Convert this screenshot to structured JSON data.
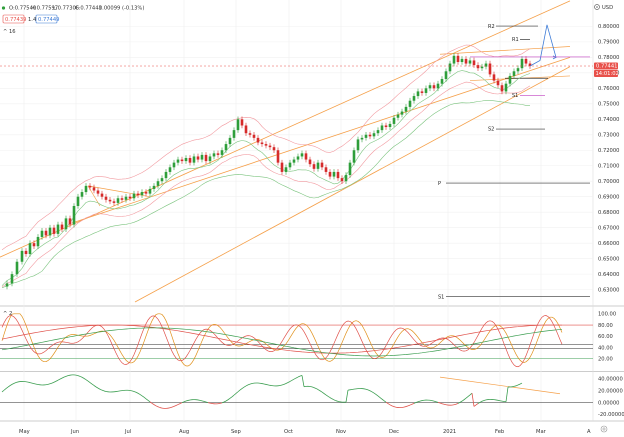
{
  "header": {
    "ohlc": {
      "o": "O:0.77540",
      "h": "H:0.77597",
      "l": "L:0.77306",
      "c": "C:0.77441",
      "chg": "-0.00099 (-0.13%)"
    },
    "bid": "0.77439",
    "spread": "1.4",
    "ask": "0.77449",
    "indicator_label": "16",
    "osc_label": "2",
    "currency": "USD"
  },
  "chart_data": {
    "type": "candlestick",
    "x_axis_labels": [
      "May",
      "Jun",
      "Jul",
      "Aug",
      "Sep",
      "Oct",
      "Nov",
      "Dec",
      "2021",
      "Feb",
      "Mar",
      "A"
    ],
    "main_y_ticks": [
      "0.80000",
      "0.79000",
      "0.78000",
      "0.77000",
      "0.76000",
      "0.75000",
      "0.74000",
      "0.73000",
      "0.72000",
      "0.71000",
      "0.70000",
      "0.69000",
      "0.68000",
      "0.67000",
      "0.66000",
      "0.65000",
      "0.64000",
      "0.63000"
    ],
    "ylim": [
      0.622,
      0.808
    ],
    "last_price": "0.77441",
    "countdown": "14:01:02",
    "pivots": [
      {
        "label": "R2",
        "value": 0.8002
      },
      {
        "label": "R1",
        "value": 0.7915
      },
      {
        "label": "S1",
        "value": 0.7555
      },
      {
        "label": "S2",
        "value": 0.7337
      },
      {
        "label": "P",
        "value": 0.6988
      },
      {
        "label": "S1",
        "value": 0.6255
      }
    ],
    "price_path": [
      [
        0,
        0.632
      ],
      [
        5,
        0.634
      ],
      [
        10,
        0.64
      ],
      [
        15,
        0.648
      ],
      [
        20,
        0.655
      ],
      [
        24,
        0.653
      ],
      [
        28,
        0.66
      ],
      [
        32,
        0.658
      ],
      [
        36,
        0.664
      ],
      [
        40,
        0.668
      ],
      [
        44,
        0.665
      ],
      [
        48,
        0.67
      ],
      [
        52,
        0.666
      ],
      [
        56,
        0.672
      ],
      [
        60,
        0.669
      ],
      [
        64,
        0.676
      ],
      [
        68,
        0.672
      ],
      [
        72,
        0.684
      ],
      [
        76,
        0.69
      ],
      [
        80,
        0.693
      ],
      [
        84,
        0.697
      ],
      [
        88,
        0.696
      ],
      [
        92,
        0.694
      ],
      [
        96,
        0.692
      ],
      [
        100,
        0.69
      ],
      [
        104,
        0.688
      ],
      [
        108,
        0.687
      ],
      [
        112,
        0.686
      ],
      [
        116,
        0.689
      ],
      [
        120,
        0.688
      ],
      [
        124,
        0.69
      ],
      [
        128,
        0.689
      ],
      [
        132,
        0.692
      ],
      [
        136,
        0.691
      ],
      [
        140,
        0.693
      ],
      [
        144,
        0.692
      ],
      [
        148,
        0.695
      ],
      [
        152,
        0.697
      ],
      [
        156,
        0.7
      ],
      [
        160,
        0.702
      ],
      [
        164,
        0.706
      ],
      [
        168,
        0.709
      ],
      [
        172,
        0.712
      ],
      [
        176,
        0.714
      ],
      [
        180,
        0.713
      ],
      [
        184,
        0.715
      ],
      [
        188,
        0.712
      ],
      [
        192,
        0.716
      ],
      [
        196,
        0.714
      ],
      [
        200,
        0.717
      ],
      [
        204,
        0.713
      ],
      [
        208,
        0.716
      ],
      [
        212,
        0.718
      ],
      [
        216,
        0.717
      ],
      [
        220,
        0.72
      ],
      [
        224,
        0.724
      ],
      [
        228,
        0.728
      ],
      [
        232,
        0.733
      ],
      [
        236,
        0.74
      ],
      [
        240,
        0.736
      ],
      [
        244,
        0.731
      ],
      [
        248,
        0.73
      ],
      [
        252,
        0.728
      ],
      [
        256,
        0.725
      ],
      [
        260,
        0.724
      ],
      [
        264,
        0.723
      ],
      [
        268,
        0.722
      ],
      [
        272,
        0.72
      ],
      [
        276,
        0.712
      ],
      [
        280,
        0.706
      ],
      [
        284,
        0.709
      ],
      [
        288,
        0.712
      ],
      [
        292,
        0.714
      ],
      [
        296,
        0.716
      ],
      [
        300,
        0.718
      ],
      [
        304,
        0.714
      ],
      [
        308,
        0.711
      ],
      [
        312,
        0.708
      ],
      [
        316,
        0.712
      ],
      [
        320,
        0.709
      ],
      [
        324,
        0.706
      ],
      [
        328,
        0.703
      ],
      [
        332,
        0.706
      ],
      [
        336,
        0.702
      ],
      [
        340,
        0.7
      ],
      [
        344,
        0.704
      ],
      [
        348,
        0.712
      ],
      [
        352,
        0.72
      ],
      [
        356,
        0.727
      ],
      [
        360,
        0.728
      ],
      [
        364,
        0.73
      ],
      [
        368,
        0.729
      ],
      [
        372,
        0.731
      ],
      [
        376,
        0.733
      ],
      [
        380,
        0.736
      ],
      [
        384,
        0.735
      ],
      [
        388,
        0.737
      ],
      [
        392,
        0.741
      ],
      [
        396,
        0.743
      ],
      [
        400,
        0.745
      ],
      [
        404,
        0.748
      ],
      [
        408,
        0.752
      ],
      [
        412,
        0.755
      ],
      [
        416,
        0.758
      ],
      [
        420,
        0.757
      ],
      [
        424,
        0.76
      ],
      [
        428,
        0.762
      ],
      [
        432,
        0.76
      ],
      [
        436,
        0.763
      ],
      [
        440,
        0.766
      ],
      [
        444,
        0.771
      ],
      [
        448,
        0.776
      ],
      [
        452,
        0.781
      ],
      [
        456,
        0.777
      ],
      [
        460,
        0.779
      ],
      [
        464,
        0.776
      ],
      [
        468,
        0.778
      ],
      [
        472,
        0.775
      ],
      [
        476,
        0.773
      ],
      [
        480,
        0.774
      ],
      [
        484,
        0.776
      ],
      [
        488,
        0.769
      ],
      [
        492,
        0.765
      ],
      [
        496,
        0.762
      ],
      [
        500,
        0.758
      ],
      [
        504,
        0.763
      ],
      [
        508,
        0.768
      ],
      [
        512,
        0.771
      ],
      [
        516,
        0.773
      ],
      [
        520,
        0.779
      ],
      [
        524,
        0.776
      ],
      [
        528,
        0.7744
      ]
    ],
    "forecast_path": [
      [
        528,
        0.7744
      ],
      [
        538,
        0.778
      ],
      [
        545,
        0.801
      ],
      [
        554,
        0.78
      ]
    ],
    "stoch_y_ticks": [
      "100.00",
      "80.00",
      "60.00",
      "40.00",
      "20.00"
    ],
    "stoch_ylim": [
      0,
      105
    ],
    "stoch_levels": [
      80,
      45,
      38,
      20
    ],
    "macd_y_ticks": [
      "40.00000",
      "20.00000",
      "0.00000",
      "-20.00000"
    ],
    "macd_ylim": [
      -26,
      50
    ]
  },
  "colors": {
    "bull": "#2e9e3a",
    "bear": "#d62b2b",
    "channel": "#f5a04a",
    "bb_red": "#f29aa0",
    "bb_green": "#7cc47f",
    "forecast": "#3d7bd6",
    "pivot_r": "#333333",
    "osc_red": "#e0514a",
    "osc_green": "#3b9e50",
    "osc_orange": "#e0901a",
    "price_tag": "#e8504a"
  }
}
